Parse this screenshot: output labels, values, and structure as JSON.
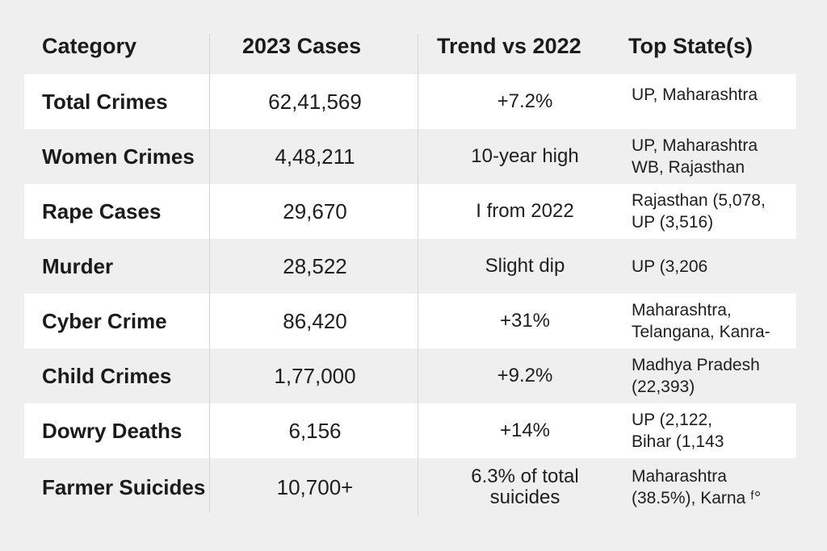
{
  "table": {
    "headers": {
      "category": "Category",
      "cases": "2023 Cases",
      "trend": "Trend vs 2022",
      "states": "Top State(s)"
    },
    "rows": [
      {
        "category": "Total Crimes",
        "cases": "62,41,569",
        "trend": [
          "+7.2%"
        ],
        "states": [
          "UP, Maharashtra"
        ]
      },
      {
        "category": "Women Crimes",
        "cases": "4,48,211",
        "trend": [
          "10-year high"
        ],
        "states": [
          "UP, Maharashtra",
          "WB, Rajasthan"
        ]
      },
      {
        "category": "Rape Cases",
        "cases": "29,670",
        "trend": [
          "I from 2022"
        ],
        "states": [
          "Rajasthan (5,078,",
          "UP (3,516)"
        ]
      },
      {
        "category": "Murder",
        "cases": "28,522",
        "trend": [
          "Slight dip"
        ],
        "states": [
          "UP (3,206"
        ]
      },
      {
        "category": "Cyber Crime",
        "cases": "86,420",
        "trend": [
          "+31%"
        ],
        "states": [
          "Maharashtra,",
          "Telangana, Kanra-"
        ]
      },
      {
        "category": "Child Crimes",
        "cases": "1,77,000",
        "trend": [
          "+9.2%"
        ],
        "states": [
          "Madhya Pradesh",
          "(22,393)"
        ]
      },
      {
        "category": "Dowry Deaths",
        "cases": "6,156",
        "trend": [
          "+14%"
        ],
        "states": [
          "UP (2,122,",
          "Bihar (1,143"
        ]
      },
      {
        "category": "Farmer Suicides",
        "cases": "10,700+",
        "trend": [
          "6.3% of total",
          "suicides"
        ],
        "states": [
          "Maharashtra",
          "(38.5%), Karna ᶠ°"
        ]
      }
    ]
  }
}
